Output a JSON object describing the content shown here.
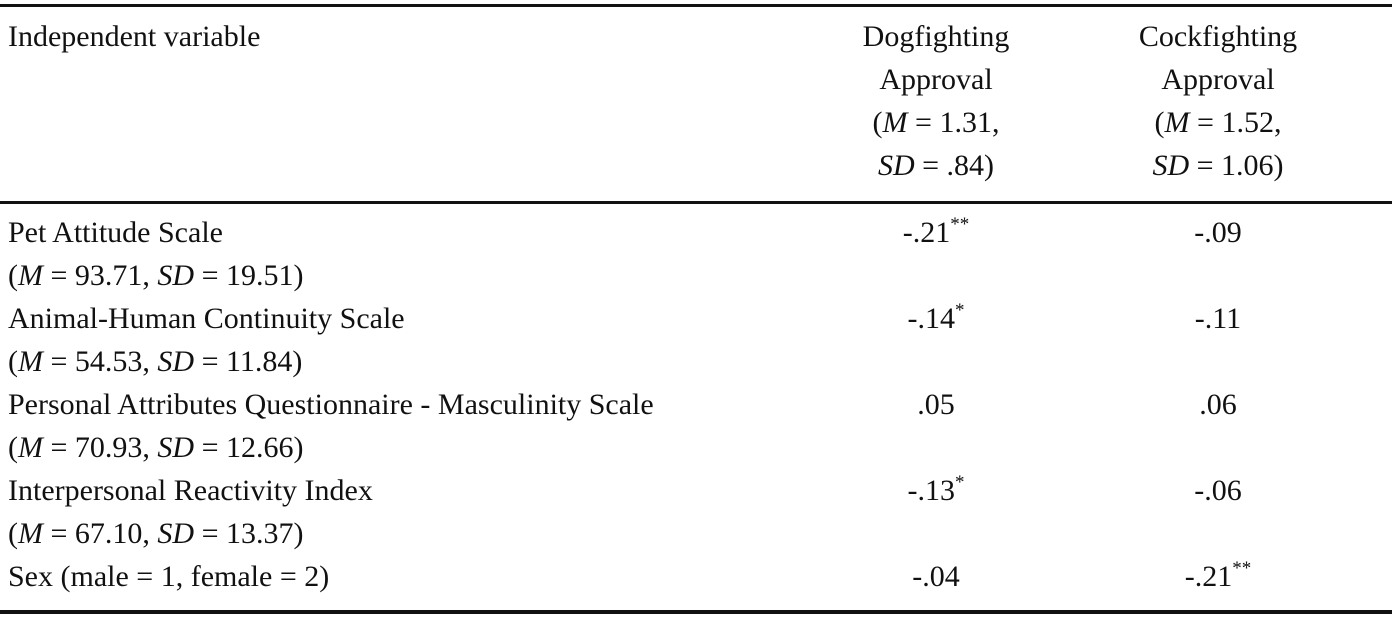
{
  "header": {
    "columns": [
      {
        "lines": [
          [
            "Independent variable"
          ]
        ]
      },
      {
        "lines": [
          [
            "Dogfighting"
          ],
          [
            "Approval"
          ],
          [
            "(",
            {
              "text": "M",
              "italic": true
            },
            " = 1.31,"
          ],
          [
            {
              "text": "SD",
              "italic": true
            },
            " = .84)"
          ]
        ]
      },
      {
        "lines": [
          [
            "Cockfighting"
          ],
          [
            "Approval"
          ],
          [
            "(",
            {
              "text": "M",
              "italic": true
            },
            " = 1.52,"
          ],
          [
            {
              "text": "SD",
              "italic": true
            },
            " = 1.06)"
          ]
        ]
      }
    ]
  },
  "rows": [
    {
      "label": "Pet Attitude Scale",
      "stats": [
        "(",
        {
          "text": "M",
          "italic": true
        },
        " = 93.71, ",
        {
          "text": "SD",
          "italic": true
        },
        " = 19.51)"
      ],
      "cells": [
        {
          "value": "-.21",
          "sig": "**"
        },
        {
          "value": "-.09"
        }
      ]
    },
    {
      "label": "Animal-Human Continuity Scale",
      "stats": [
        "(",
        {
          "text": "M",
          "italic": true
        },
        " = 54.53, ",
        {
          "text": "SD",
          "italic": true
        },
        " = 11.84)"
      ],
      "cells": [
        {
          "value": "-.14",
          "sig": "*"
        },
        {
          "value": "-.11"
        }
      ]
    },
    {
      "label": "Personal Attributes Questionnaire - Masculinity Scale",
      "stats": [
        "(",
        {
          "text": "M",
          "italic": true
        },
        " = 70.93, ",
        {
          "text": "SD",
          "italic": true
        },
        " = 12.66)"
      ],
      "cells": [
        {
          "value": ".05"
        },
        {
          "value": ".06"
        }
      ]
    },
    {
      "label": "Interpersonal Reactivity Index",
      "stats": [
        "(",
        {
          "text": "M",
          "italic": true
        },
        " = 67.10, ",
        {
          "text": "SD",
          "italic": true
        },
        " = 13.37)"
      ],
      "cells": [
        {
          "value": "-.13",
          "sig": "*"
        },
        {
          "value": "-.06"
        }
      ]
    },
    {
      "label": "Sex (male = 1, female = 2)",
      "cells": [
        {
          "value": "-.04"
        },
        {
          "value": "-.21",
          "sig": "**"
        }
      ]
    }
  ]
}
